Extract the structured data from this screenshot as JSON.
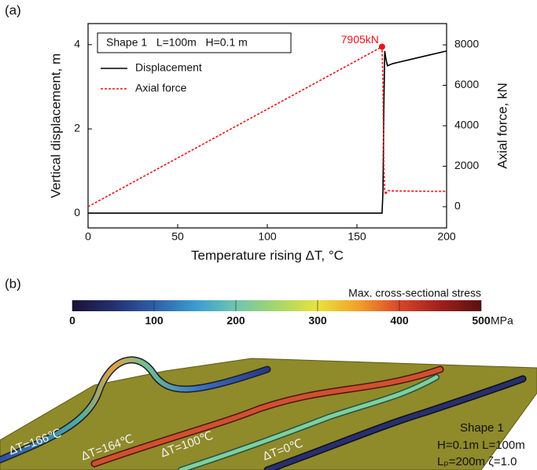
{
  "panel_labels": [
    "(a)",
    "(b)"
  ],
  "chart_data": [
    {
      "type": "line",
      "xlabel": "Temperature rising ΔT, °C",
      "ylabel": "Vertical displacement, m",
      "y2label": "Axial force, kN",
      "legend_title": "Shape 1   L=100m   H=0.1 m",
      "x": [
        0,
        100,
        164,
        164.5,
        165,
        165.5,
        166,
        167,
        170,
        180,
        190,
        200
      ],
      "series": [
        {
          "name": "Displacement",
          "color": "#000000",
          "values": [
            0,
            0,
            0,
            0.5,
            2.5,
            3.85,
            3.7,
            3.5,
            3.55,
            3.65,
            3.75,
            3.85
          ]
        },
        {
          "name": "Axial force",
          "color": "#e8141b",
          "dashed": true,
          "axis": "y2",
          "values": [
            0,
            4820,
            7905,
            6000,
            2000,
            800,
            600,
            800,
            780,
            770,
            760,
            760
          ]
        }
      ],
      "xlim": [
        0,
        200
      ],
      "xticks": [
        0,
        50,
        100,
        150,
        200
      ],
      "ylim": [
        -0.35,
        4.5
      ],
      "yticks": [
        0,
        2,
        4
      ],
      "y2lim": [
        -1050,
        9050
      ],
      "y2ticks": [
        0,
        2000,
        4000,
        6000,
        8000
      ],
      "annotations": [
        {
          "text": "7905kN",
          "x": 164,
          "y2": 7905,
          "color": "#e8141b"
        }
      ]
    },
    {
      "type": "colorbar",
      "title": "Max. cross-sectional stress",
      "unit": "MPa",
      "lim": [
        0,
        500
      ],
      "ticks": [
        0,
        100,
        200,
        300,
        400,
        500
      ],
      "colors": [
        "#1a1238",
        "#24306e",
        "#2f5ea8",
        "#3a9bd0",
        "#6fc6b0",
        "#a6d66a",
        "#e7e33c",
        "#f2a02a",
        "#d9452a",
        "#a0201e",
        "#5a1010"
      ]
    }
  ],
  "scene": {
    "curve_labels": [
      "ΔT=166℃",
      "ΔT=164℃",
      "ΔT=100℃",
      "ΔT=0℃"
    ],
    "info": [
      "Shape 1",
      "H=0.1m   L=100m",
      "Lₚ=200m  ζ=1.0"
    ]
  }
}
